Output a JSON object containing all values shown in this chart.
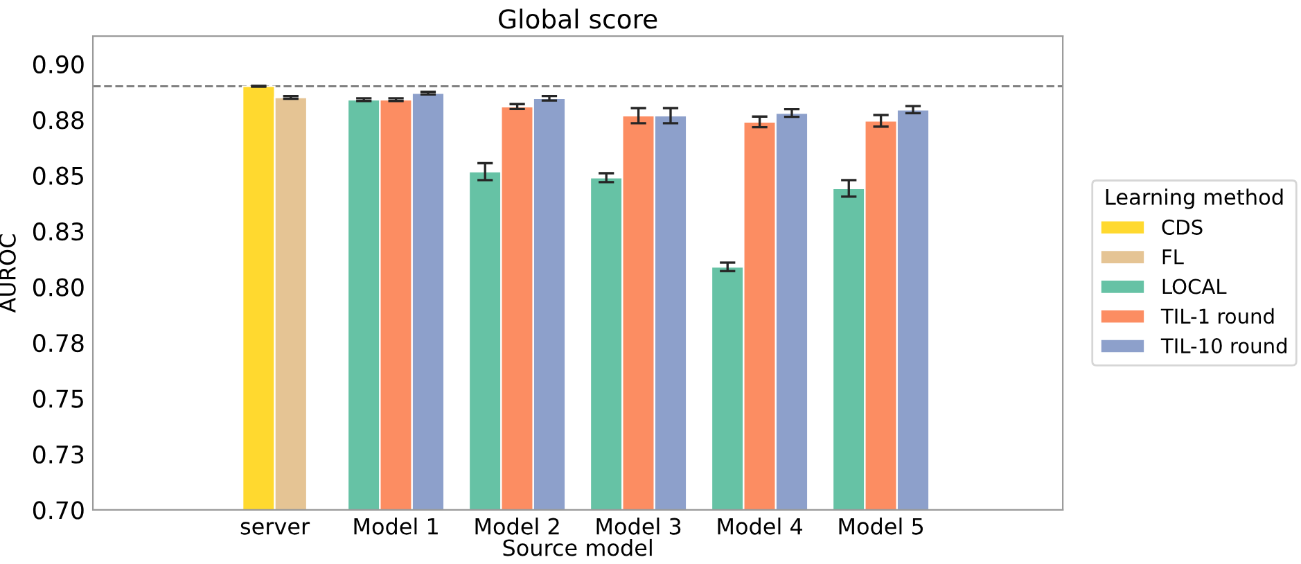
{
  "chart_data": {
    "type": "bar",
    "title": "Global score",
    "xlabel": "Source model",
    "ylabel": "AUROC",
    "legend_title": "Learning method",
    "categories": [
      "server",
      "Model 1",
      "Model 2",
      "Model 3",
      "Model 4",
      "Model 5"
    ],
    "series": [
      {
        "name": "CDS",
        "color": "#ffd92f",
        "values": [
          0.89,
          null,
          null,
          null,
          null,
          null
        ],
        "errors": [
          0.0002,
          null,
          null,
          null,
          null,
          null
        ]
      },
      {
        "name": "FL",
        "color": "#e5c494",
        "values": [
          0.885,
          null,
          null,
          null,
          null,
          null
        ],
        "errors": [
          0.0006,
          null,
          null,
          null,
          null,
          null
        ]
      },
      {
        "name": "LOCAL",
        "color": "#66c2a5",
        "values": [
          null,
          0.884,
          0.8517,
          0.849,
          0.809,
          0.8442
        ],
        "errors": [
          null,
          0.0006,
          0.0038,
          0.002,
          0.0019,
          0.0037
        ]
      },
      {
        "name": "TIL-1 round",
        "color": "#fc8d62",
        "values": [
          null,
          0.884,
          0.8809,
          0.8768,
          0.874,
          0.8745
        ],
        "errors": [
          null,
          0.0006,
          0.0011,
          0.0034,
          0.0024,
          0.0026
        ]
      },
      {
        "name": "TIL-10 round",
        "color": "#8da0cb",
        "values": [
          null,
          0.8869,
          0.8846,
          0.8768,
          0.878,
          0.8795
        ],
        "errors": [
          null,
          0.0006,
          0.001,
          0.0034,
          0.0017,
          0.0016
        ]
      }
    ],
    "ylim": [
      0.7,
      0.9125
    ],
    "yticks": [
      {
        "value": 0.7,
        "label": "0.70"
      },
      {
        "value": 0.725,
        "label": "0.73"
      },
      {
        "value": 0.75,
        "label": "0.75"
      },
      {
        "value": 0.775,
        "label": "0.78"
      },
      {
        "value": 0.8,
        "label": "0.80"
      },
      {
        "value": 0.825,
        "label": "0.83"
      },
      {
        "value": 0.85,
        "label": "0.85"
      },
      {
        "value": 0.875,
        "label": "0.88"
      },
      {
        "value": 0.9,
        "label": "0.90"
      }
    ],
    "ref_lines": [
      {
        "axis": "y",
        "value": 0.89,
        "color": "#808080",
        "line_style": "dashed"
      }
    ],
    "legend": "right"
  }
}
